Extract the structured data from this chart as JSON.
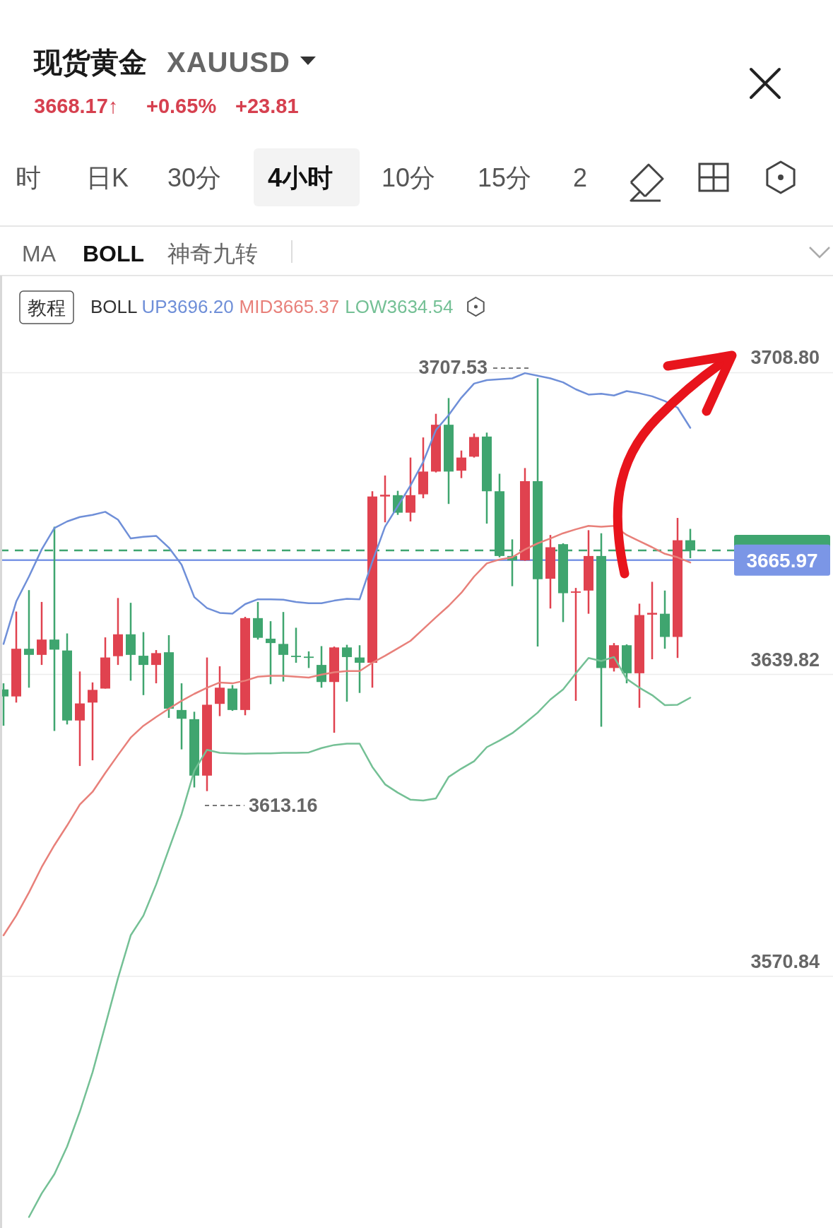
{
  "chart_data": {
    "type": "candlestick",
    "title": "现货黄金",
    "subtitle": "XAUUSD",
    "legend_title": "BOLL",
    "legend": "top",
    "grid": "y",
    "tick_labels": "y",
    "annotations": [
      "3668.17↑",
      "+0.65%",
      "+23.81",
      "时",
      "日K",
      "30分",
      "4小时",
      "10分",
      "15分",
      "2",
      "MA",
      "BOLL",
      "神奇九转",
      "教程",
      "3707.53",
      "3613.16"
    ],
    "ylim": [
      3513.3,
      3731.0
    ],
    "yticks": [
      {
        "value": 3708.8,
        "label": "3708.80"
      },
      {
        "value": 3639.82,
        "label": "3639.82"
      },
      {
        "value": 3570.84,
        "label": "3570.84"
      }
    ],
    "categories": [
      null,
      null,
      null,
      null,
      null,
      null,
      null,
      null,
      null,
      null,
      null,
      null,
      null,
      null,
      null,
      null,
      null,
      null,
      null,
      null,
      null,
      null,
      null,
      null,
      null,
      null,
      null,
      null,
      null,
      null,
      null,
      null,
      null,
      null,
      null,
      null,
      null,
      null,
      null,
      null,
      null,
      null,
      null,
      null,
      null,
      null,
      null,
      null,
      null,
      null,
      null,
      null,
      null,
      null,
      null
    ],
    "ohlc": [
      [
        3636.4,
        3637.8,
        3628.1,
        3634.8
      ],
      [
        3634.8,
        3654.2,
        3633.4,
        3645.7
      ],
      [
        3645.7,
        3659.1,
        3636.8,
        3644.3
      ],
      [
        3644.3,
        3656.4,
        3642.0,
        3647.8
      ],
      [
        3647.8,
        3673.6,
        3626.9,
        3645.5
      ],
      [
        3645.3,
        3649.2,
        3628.4,
        3629.3
      ],
      [
        3629.3,
        3640.5,
        3618.9,
        3633.2
      ],
      [
        3633.4,
        3638.0,
        3620.2,
        3636.3
      ],
      [
        3636.6,
        3648.3,
        3636.6,
        3643.7
      ],
      [
        3644.0,
        3657.3,
        3642.0,
        3649.0
      ],
      [
        3649.0,
        3656.2,
        3638.4,
        3644.3
      ],
      [
        3644.1,
        3649.5,
        3635.1,
        3642.0
      ],
      [
        3642.0,
        3645.4,
        3637.8,
        3644.7
      ],
      [
        3644.9,
        3648.8,
        3629.9,
        3632.0
      ],
      [
        3631.7,
        3637.8,
        3622.7,
        3629.7
      ],
      [
        3629.6,
        3631.3,
        3614.0,
        3616.7
      ],
      [
        3616.7,
        3643.7,
        3613.16,
        3632.9
      ],
      [
        3633.1,
        3641.7,
        3630.3,
        3636.8
      ],
      [
        3636.6,
        3637.4,
        3631.5,
        3631.7
      ],
      [
        3631.7,
        3653.0,
        3630.5,
        3652.7
      ],
      [
        3652.7,
        3656.4,
        3647.8,
        3648.2
      ],
      [
        3648.0,
        3652.0,
        3637.6,
        3647.0
      ],
      [
        3646.8,
        3654.1,
        3638.2,
        3644.3
      ],
      [
        3644.1,
        3650.5,
        3642.5,
        3644.0
      ],
      [
        3643.9,
        3645.1,
        3641.3,
        3643.7
      ],
      [
        3642.0,
        3646.3,
        3636.8,
        3638.1
      ],
      [
        3638.1,
        3646.2,
        3626.5,
        3646.0
      ],
      [
        3646.0,
        3646.6,
        3633.6,
        3643.8
      ],
      [
        3643.7,
        3646.5,
        3635.6,
        3642.5
      ],
      [
        3642.5,
        3681.7,
        3636.8,
        3680.5
      ],
      [
        3680.5,
        3685.3,
        3674.6,
        3680.9
      ],
      [
        3680.8,
        3681.8,
        3676.3,
        3676.8
      ],
      [
        3676.8,
        3689.4,
        3674.8,
        3680.8
      ],
      [
        3681.0,
        3694.0,
        3680.1,
        3686.2
      ],
      [
        3686.2,
        3699.4,
        3686.0,
        3696.9
      ],
      [
        3696.9,
        3703.0,
        3678.8,
        3686.2
      ],
      [
        3686.4,
        3691.0,
        3684.7,
        3689.4
      ],
      [
        3689.6,
        3694.9,
        3689.4,
        3694.1
      ],
      [
        3694.2,
        3695.1,
        3674.3,
        3681.7
      ],
      [
        3681.7,
        3685.7,
        3666.6,
        3666.9
      ],
      [
        3666.9,
        3670.7,
        3660.0,
        3665.9
      ],
      [
        3665.9,
        3687.0,
        3665.8,
        3684.0
      ],
      [
        3684.0,
        3707.53,
        3646.2,
        3661.6
      ],
      [
        3661.7,
        3671.7,
        3654.9,
        3668.9
      ],
      [
        3669.6,
        3669.8,
        3651.8,
        3658.4
      ],
      [
        3658.5,
        3659.6,
        3633.8,
        3658.8
      ],
      [
        3659.0,
        3672.8,
        3653.7,
        3666.9
      ],
      [
        3666.9,
        3672.1,
        3627.9,
        3641.3
      ],
      [
        3641.3,
        3647.0,
        3640.5,
        3646.5
      ],
      [
        3646.5,
        3646.7,
        3637.8,
        3640.1
      ],
      [
        3640.1,
        3656.0,
        3632.2,
        3653.4
      ],
      [
        3653.5,
        3661.0,
        3643.3,
        3653.9
      ],
      [
        3653.7,
        3659.0,
        3645.7,
        3648.4
      ],
      [
        3648.4,
        3675.6,
        3643.6,
        3670.5
      ],
      [
        3670.5,
        3673.1,
        3666.4,
        3668.17
      ]
    ],
    "colors": [
      "#3fa56f",
      "#e0424f",
      "#3fa56f",
      "#e0424f",
      "#3fa56f",
      "#3fa56f",
      "#e0424f",
      "#e0424f",
      "#e0424f",
      "#e0424f",
      "#3fa56f",
      "#3fa56f",
      "#e0424f",
      "#3fa56f",
      "#3fa56f",
      "#3fa56f",
      "#e0424f",
      "#e0424f",
      "#3fa56f",
      "#e0424f",
      "#3fa56f",
      "#3fa56f",
      "#3fa56f",
      "#3fa56f",
      "#3fa56f",
      "#3fa56f",
      "#e0424f",
      "#3fa56f",
      "#3fa56f",
      "#e0424f",
      "#e0424f",
      "#3fa56f",
      "#e0424f",
      "#e0424f",
      "#e0424f",
      "#3fa56f",
      "#e0424f",
      "#e0424f",
      "#3fa56f",
      "#3fa56f",
      "#3fa56f",
      "#e0424f",
      "#3fa56f",
      "#e0424f",
      "#3fa56f",
      "#e0424f",
      "#e0424f",
      "#3fa56f",
      "#e0424f",
      "#3fa56f",
      "#e0424f",
      "#e0424f",
      "#3fa56f",
      "#e0424f",
      "#3fa56f"
    ],
    "series": [
      {
        "name": "UP3696.20",
        "type": "line",
        "color": "#6f8fd8",
        "values": [
          3646.8,
          3656.5,
          3662.2,
          3668.4,
          3673.3,
          3674.8,
          3675.8,
          3676.3,
          3677.0,
          3675.2,
          3670.9,
          3671.3,
          3671.5,
          3668.8,
          3664.9,
          3657.5,
          3655.0,
          3653.9,
          3653.7,
          3655.9,
          3657.0,
          3657.0,
          3656.9,
          3656.4,
          3656.1,
          3656.1,
          3656.7,
          3657.1,
          3657.0,
          3665.6,
          3673.6,
          3678.3,
          3683.0,
          3688.4,
          3695.7,
          3699.1,
          3703.1,
          3706.3,
          3707.1,
          3707.3,
          3707.5,
          3708.7,
          3708.1,
          3707.5,
          3706.6,
          3705.0,
          3703.8,
          3704.0,
          3703.6,
          3704.6,
          3704.1,
          3703.4,
          3702.3,
          3700.8,
          3696.2
        ]
      },
      {
        "name": "MID3665.37",
        "type": "line",
        "color": "#e8807a",
        "values": [
          3580.2,
          3584.7,
          3590.0,
          3595.8,
          3600.8,
          3605.3,
          3610.1,
          3613.0,
          3617.3,
          3621.4,
          3625.4,
          3628.1,
          3630.1,
          3632.0,
          3633.8,
          3635.4,
          3636.8,
          3638.0,
          3637.8,
          3638.4,
          3639.3,
          3639.5,
          3639.5,
          3639.3,
          3639.1,
          3639.8,
          3640.3,
          3640.6,
          3640.6,
          3642.5,
          3644.1,
          3645.8,
          3647.5,
          3650.2,
          3652.9,
          3655.5,
          3658.5,
          3662.2,
          3665.2,
          3666.1,
          3666.6,
          3668.4,
          3669.8,
          3670.9,
          3672.1,
          3673.0,
          3673.8,
          3673.6,
          3673.8,
          3671.7,
          3670.3,
          3668.9,
          3667.4,
          3666.6,
          3665.4
        ]
      },
      {
        "name": "LOW3634.54",
        "type": "line",
        "color": "#74c095",
        "values": [
          null,
          null,
          3515.8,
          3521.2,
          3525.6,
          3531.9,
          3539.9,
          3548.9,
          3559.6,
          3570.4,
          3580.2,
          3584.7,
          3591.8,
          3599.9,
          3607.9,
          3617.8,
          3622.6,
          3621.9,
          3621.8,
          3621.7,
          3621.8,
          3621.8,
          3621.9,
          3621.9,
          3622.0,
          3623.0,
          3623.7,
          3624.0,
          3624.0,
          3618.7,
          3614.7,
          3612.8,
          3611.2,
          3611.0,
          3611.5,
          3616.4,
          3618.3,
          3620.0,
          3623.2,
          3624.7,
          3626.4,
          3628.7,
          3631.1,
          3634.1,
          3636.4,
          3640.1,
          3643.6,
          3642.9,
          3643.8,
          3638.8,
          3636.8,
          3635.1,
          3632.8,
          3632.9,
          3634.5
        ]
      }
    ],
    "ref_lines": [
      {
        "axis": "y",
        "value": 3668.17,
        "label": null,
        "color": "#3fa56f",
        "line_style": "dashed"
      },
      {
        "axis": "y",
        "value": 3665.97,
        "label": "3665.97",
        "color": "#7b96e6",
        "line_style": "solid"
      }
    ]
  }
}
